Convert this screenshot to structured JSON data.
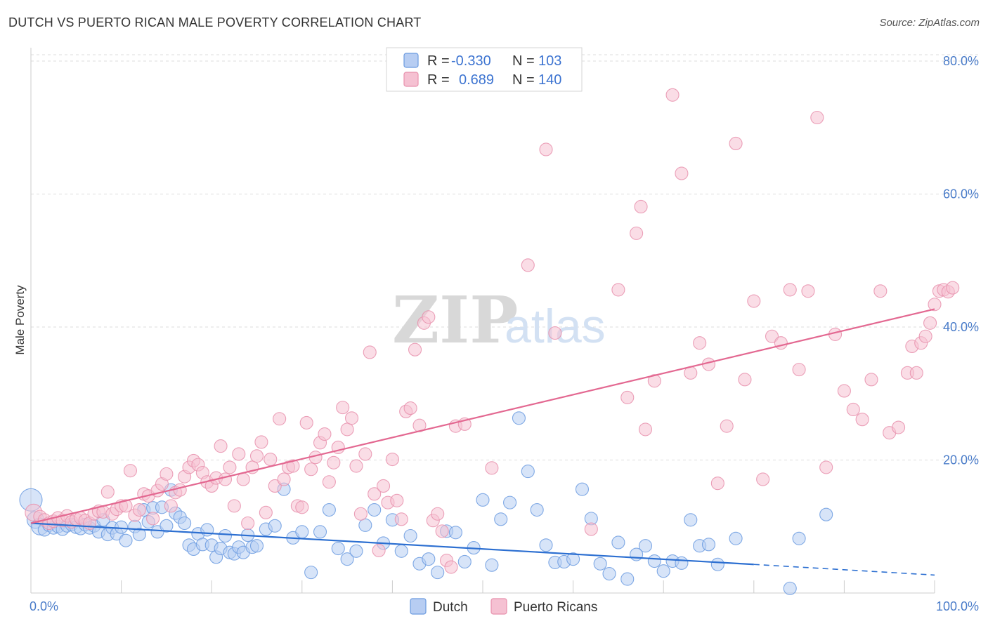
{
  "header": {
    "title": "DUTCH VS PUERTO RICAN MALE POVERTY CORRELATION CHART",
    "source": "Source: ZipAtlas.com"
  },
  "watermark": {
    "part1": "ZIP",
    "part2": "atlas"
  },
  "colors": {
    "dutch": "#6b9be0",
    "dutch_fill": "#b7cdf2",
    "dutch_line": "#2c6fd1",
    "pr": "#e891ad",
    "pr_fill": "#f5c1d2",
    "pr_line": "#e36891",
    "axis_label": "#4a7cc9",
    "grid": "#dddddd"
  },
  "stats": {
    "r_label": "R =",
    "n_label": "N =",
    "dutch": {
      "r": "-0.330",
      "n": "103"
    },
    "pr": {
      "r": "0.689",
      "n": "140"
    }
  },
  "chart_data": {
    "type": "scatter",
    "title": "DUTCH VS PUERTO RICAN MALE POVERTY CORRELATION CHART",
    "xlabel": "",
    "ylabel": "Male Poverty",
    "xlim": [
      0,
      100
    ],
    "ylim": [
      0,
      82
    ],
    "x_tick_labels": [
      "0.0%",
      "100.0%"
    ],
    "y_ticks": [
      20,
      40,
      60,
      80
    ],
    "y_tick_labels": [
      "20.0%",
      "40.0%",
      "60.0%",
      "80.0%"
    ],
    "grid": true,
    "legend": [
      "Dutch",
      "Puerto Ricans"
    ],
    "series": [
      {
        "name": "Dutch",
        "trend": {
          "x0": 0,
          "y0": 10.5,
          "x1": 80,
          "y1": 4.3,
          "dash_to_x": 100,
          "dash_to_y": 2.7
        },
        "points": [
          [
            0,
            14,
            3
          ],
          [
            0.5,
            11,
            2
          ],
          [
            1,
            10,
            2
          ],
          [
            1.5,
            9.5,
            1
          ],
          [
            2,
            10.2,
            1
          ],
          [
            2.5,
            9.8,
            1
          ],
          [
            3,
            10,
            1
          ],
          [
            3.5,
            9.6,
            1
          ],
          [
            4,
            10.1,
            1
          ],
          [
            4.5,
            10.3,
            1
          ],
          [
            5,
            9.9,
            1
          ],
          [
            5.5,
            9.7,
            1
          ],
          [
            6,
            10.3,
            1
          ],
          [
            6.5,
            9.8,
            1
          ],
          [
            7,
            10.1,
            1
          ],
          [
            7.5,
            9.2,
            1
          ],
          [
            8,
            11,
            1
          ],
          [
            8.5,
            8.8,
            1
          ],
          [
            9,
            9.8,
            1
          ],
          [
            9.5,
            8.9,
            1
          ],
          [
            10,
            9.9,
            1
          ],
          [
            10.5,
            7.9,
            1
          ],
          [
            11.5,
            10,
            1
          ],
          [
            12,
            8.8,
            1
          ],
          [
            12.5,
            12.5,
            1
          ],
          [
            13,
            10.7,
            1
          ],
          [
            13.5,
            12.8,
            1
          ],
          [
            14,
            9.2,
            1
          ],
          [
            14.5,
            12.9,
            1
          ],
          [
            15,
            10.1,
            1
          ],
          [
            15.5,
            15.5,
            1
          ],
          [
            16,
            12,
            1
          ],
          [
            16.5,
            11.4,
            1
          ],
          [
            17,
            10.5,
            1
          ],
          [
            17.5,
            7.2,
            1
          ],
          [
            18,
            6.6,
            1
          ],
          [
            18.5,
            8.9,
            1
          ],
          [
            19,
            7.3,
            1
          ],
          [
            19.5,
            9.5,
            1
          ],
          [
            20,
            7.2,
            1
          ],
          [
            20.5,
            5.4,
            1
          ],
          [
            21,
            6.7,
            1
          ],
          [
            21.5,
            8.6,
            1
          ],
          [
            22,
            6.1,
            1
          ],
          [
            22.5,
            5.9,
            1
          ],
          [
            23,
            6.9,
            1
          ],
          [
            23.5,
            6.1,
            1
          ],
          [
            24,
            8.7,
            1
          ],
          [
            24.5,
            6.9,
            1
          ],
          [
            25,
            7.1,
            1
          ],
          [
            26,
            9.6,
            1
          ],
          [
            27,
            10.1,
            1
          ],
          [
            28,
            15.6,
            1
          ],
          [
            29,
            8.3,
            1
          ],
          [
            30,
            9.2,
            1
          ],
          [
            31,
            3.1,
            1
          ],
          [
            32,
            9.2,
            1
          ],
          [
            33,
            12.5,
            1
          ],
          [
            34,
            6.7,
            1
          ],
          [
            35,
            5.1,
            1
          ],
          [
            36,
            6.3,
            1
          ],
          [
            37,
            10.2,
            1
          ],
          [
            38,
            12.5,
            1
          ],
          [
            39,
            7.5,
            1
          ],
          [
            40,
            11,
            1
          ],
          [
            41,
            6.3,
            1
          ],
          [
            42,
            8.6,
            1
          ],
          [
            43,
            4.4,
            1
          ],
          [
            44,
            5.1,
            1
          ],
          [
            45,
            3.1,
            1
          ],
          [
            46,
            9.3,
            1
          ],
          [
            47,
            9.1,
            1
          ],
          [
            48,
            4.7,
            1
          ],
          [
            49,
            6.8,
            1
          ],
          [
            50,
            14,
            1
          ],
          [
            51,
            4.2,
            1
          ],
          [
            52,
            11.1,
            1
          ],
          [
            53,
            13.6,
            1
          ],
          [
            54,
            26.3,
            1
          ],
          [
            55,
            18.3,
            1
          ],
          [
            56,
            12.5,
            1
          ],
          [
            57,
            7.2,
            1
          ],
          [
            58,
            4.6,
            1
          ],
          [
            59,
            4.7,
            1
          ],
          [
            60,
            5.1,
            1
          ],
          [
            61,
            15.6,
            1
          ],
          [
            62,
            11.2,
            1
          ],
          [
            63,
            4.4,
            1
          ],
          [
            64,
            2.9,
            1
          ],
          [
            65,
            7.6,
            1
          ],
          [
            66,
            2.1,
            1
          ],
          [
            67,
            5.8,
            1
          ],
          [
            68,
            7.1,
            1
          ],
          [
            69,
            4.8,
            1
          ],
          [
            70,
            3.3,
            1
          ],
          [
            71,
            4.8,
            1
          ],
          [
            72,
            4.5,
            1
          ],
          [
            73,
            11,
            1
          ],
          [
            74,
            7.1,
            1
          ],
          [
            75,
            7.3,
            1
          ],
          [
            76,
            4.3,
            1
          ],
          [
            78,
            8.2,
            1
          ],
          [
            84,
            0.7,
            1
          ],
          [
            85,
            8.2,
            1
          ],
          [
            88,
            11.8,
            1
          ]
        ]
      },
      {
        "name": "Puerto Ricans",
        "trend": {
          "x0": 0,
          "y0": 10.5,
          "x1": 100,
          "y1": 42.7
        },
        "points": [
          [
            0.3,
            12.1,
            2
          ],
          [
            1,
            11.5,
            1
          ],
          [
            1.5,
            11,
            1
          ],
          [
            2,
            10.5,
            1
          ],
          [
            2.5,
            10.8,
            1
          ],
          [
            3,
            11.3,
            1
          ],
          [
            3.5,
            10.9,
            1
          ],
          [
            4,
            11.6,
            1
          ],
          [
            4.5,
            10.7,
            1
          ],
          [
            5,
            11.1,
            1
          ],
          [
            5.5,
            11.3,
            1
          ],
          [
            6,
            10.9,
            1
          ],
          [
            6.5,
            10.5,
            1
          ],
          [
            7,
            11.9,
            1
          ],
          [
            7.5,
            12.3,
            1
          ],
          [
            8,
            12.2,
            1
          ],
          [
            8.5,
            15.2,
            1
          ],
          [
            9,
            11.9,
            1
          ],
          [
            9.5,
            12.6,
            1
          ],
          [
            10,
            13.1,
            1
          ],
          [
            10.5,
            13.1,
            1
          ],
          [
            11,
            18.4,
            1
          ],
          [
            11.5,
            11.7,
            1
          ],
          [
            12,
            12.5,
            1
          ],
          [
            12.5,
            14.9,
            1
          ],
          [
            13,
            14.6,
            1
          ],
          [
            13.5,
            11.2,
            1
          ],
          [
            14,
            15.4,
            1
          ],
          [
            14.5,
            16.4,
            1
          ],
          [
            15,
            17.9,
            1
          ],
          [
            15.5,
            13.1,
            1
          ],
          [
            16,
            15.1,
            1
          ],
          [
            16.5,
            15.5,
            1
          ],
          [
            17,
            17.5,
            1
          ],
          [
            17.5,
            18.9,
            1
          ],
          [
            18,
            19.9,
            1
          ],
          [
            18.5,
            19.3,
            1
          ],
          [
            19,
            18.1,
            1
          ],
          [
            19.5,
            16.7,
            1
          ],
          [
            20,
            16.1,
            1
          ],
          [
            20.5,
            17.3,
            1
          ],
          [
            21,
            22.1,
            1
          ],
          [
            21.5,
            17.1,
            1
          ],
          [
            22,
            18.9,
            1
          ],
          [
            22.5,
            13.1,
            1
          ],
          [
            23,
            20.9,
            1
          ],
          [
            23.5,
            17.1,
            1
          ],
          [
            24,
            10.5,
            1
          ],
          [
            24.5,
            18.9,
            1
          ],
          [
            25,
            20.6,
            1
          ],
          [
            25.5,
            22.7,
            1
          ],
          [
            26,
            12.1,
            1
          ],
          [
            26.5,
            20.1,
            1
          ],
          [
            27,
            16.1,
            1
          ],
          [
            27.5,
            26.2,
            1
          ],
          [
            28,
            17.1,
            1
          ],
          [
            28.5,
            18.9,
            1
          ],
          [
            29,
            19.1,
            1
          ],
          [
            29.5,
            13.1,
            1
          ],
          [
            30,
            12.9,
            1
          ],
          [
            30.5,
            25.6,
            1
          ],
          [
            31,
            18.6,
            1
          ],
          [
            31.5,
            20.4,
            1
          ],
          [
            32,
            22.6,
            1
          ],
          [
            32.5,
            23.9,
            1
          ],
          [
            33,
            16.7,
            1
          ],
          [
            33.5,
            19.6,
            1
          ],
          [
            34,
            21.9,
            1
          ],
          [
            34.5,
            27.9,
            1
          ],
          [
            35,
            24.6,
            1
          ],
          [
            35.5,
            26.3,
            1
          ],
          [
            36,
            19.1,
            1
          ],
          [
            36.5,
            11.9,
            1
          ],
          [
            37,
            20.9,
            1
          ],
          [
            37.5,
            36.2,
            1
          ],
          [
            38,
            14.9,
            1
          ],
          [
            38.5,
            6.4,
            1
          ],
          [
            39,
            16.1,
            1
          ],
          [
            39.5,
            13.6,
            1
          ],
          [
            40,
            20.1,
            1
          ],
          [
            40.5,
            13.9,
            1
          ],
          [
            41,
            11.1,
            1
          ],
          [
            41.5,
            27.3,
            1
          ],
          [
            42,
            27.8,
            1
          ],
          [
            42.5,
            36.6,
            1
          ],
          [
            43,
            25.2,
            1
          ],
          [
            43.5,
            40.6,
            1
          ],
          [
            44,
            41.5,
            1
          ],
          [
            44.5,
            10.9,
            1
          ],
          [
            45,
            11.9,
            1
          ],
          [
            45.5,
            9.3,
            1
          ],
          [
            46,
            4.9,
            1
          ],
          [
            46.5,
            3.9,
            1
          ],
          [
            47,
            25.1,
            1
          ],
          [
            48,
            25.4,
            1
          ],
          [
            51,
            18.8,
            1
          ],
          [
            55,
            49.3,
            1
          ],
          [
            57,
            66.7,
            1
          ],
          [
            58,
            39.1,
            1
          ],
          [
            62,
            9.6,
            1
          ],
          [
            65,
            45.6,
            1
          ],
          [
            66,
            29.4,
            1
          ],
          [
            67,
            54.1,
            1
          ],
          [
            67.5,
            58.1,
            1
          ],
          [
            68,
            24.6,
            1
          ],
          [
            69,
            31.9,
            1
          ],
          [
            71,
            74.9,
            1
          ],
          [
            72,
            63.1,
            1
          ],
          [
            73,
            33.1,
            1
          ],
          [
            74,
            37.6,
            1
          ],
          [
            75,
            34.4,
            1
          ],
          [
            76,
            16.5,
            1
          ],
          [
            77,
            25.1,
            1
          ],
          [
            78,
            67.6,
            1
          ],
          [
            79,
            32.1,
            1
          ],
          [
            80,
            43.9,
            1
          ],
          [
            81,
            17.1,
            1
          ],
          [
            82,
            38.6,
            1
          ],
          [
            83,
            37.6,
            1
          ],
          [
            84,
            45.6,
            1
          ],
          [
            85,
            33.6,
            1
          ],
          [
            86,
            45.4,
            1
          ],
          [
            87,
            71.5,
            1
          ],
          [
            88,
            18.9,
            1
          ],
          [
            89,
            38.9,
            1
          ],
          [
            90,
            30.4,
            1
          ],
          [
            91,
            27.6,
            1
          ],
          [
            92,
            26.1,
            1
          ],
          [
            93,
            32.1,
            1
          ],
          [
            94,
            45.4,
            1
          ],
          [
            95,
            24.1,
            1
          ],
          [
            96,
            24.9,
            1
          ],
          [
            97,
            33.1,
            1
          ],
          [
            97.5,
            37.1,
            1
          ],
          [
            98,
            33.1,
            1
          ],
          [
            98.5,
            37.6,
            1
          ],
          [
            99,
            38.6,
            1
          ],
          [
            99.5,
            40.6,
            1
          ],
          [
            100,
            43.4,
            1
          ],
          [
            100.5,
            45.4,
            1
          ],
          [
            101,
            45.6,
            1
          ],
          [
            101.5,
            45.3,
            1
          ],
          [
            102,
            45.9,
            1
          ]
        ]
      }
    ]
  },
  "legend_bottom": {
    "dutch": "Dutch",
    "pr": "Puerto Ricans"
  }
}
